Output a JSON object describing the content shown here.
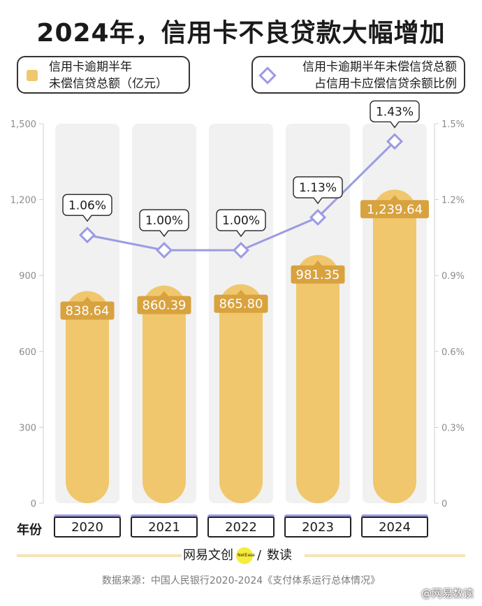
{
  "title": "2024年，信用卡不良贷款大幅增加",
  "legend": {
    "amount_line1": "信用卡逾期半年",
    "amount_line2": "未偿信贷总额（亿元）",
    "ratio_line1": "信用卡逾期半年未偿信贷总额",
    "ratio_line2": "占信用卡应偿信贷余额比例"
  },
  "x_axis_title": "年份",
  "brand": {
    "cn": "网易文创",
    "en": "NetEase",
    "sep": "/",
    "cn2": "数读"
  },
  "source": "数据来源：中国人民银行2020-2024《支付体系运行总体情况》",
  "watermark": "@网易数读",
  "colors": {
    "bar": "#f1c76d",
    "bar_label": "#d8a23e",
    "track": "#f1f1f1",
    "line": "#9b9be4"
  },
  "chart_data": {
    "type": "bar+line",
    "categories": [
      "2020",
      "2021",
      "2022",
      "2023",
      "2024"
    ],
    "series": [
      {
        "name": "信用卡逾期半年未偿信贷总额（亿元）",
        "type": "bar",
        "axis": "left",
        "values": [
          838.64,
          860.39,
          865.8,
          981.35,
          1239.64
        ],
        "labels": [
          "838.64",
          "860.39",
          "865.80",
          "981.35",
          "1,239.64"
        ]
      },
      {
        "name": "信用卡逾期半年未偿信贷总额占信用卡应偿信贷余额比例",
        "type": "line",
        "axis": "right",
        "values": [
          1.06,
          1.0,
          1.0,
          1.13,
          1.43
        ],
        "labels": [
          "1.06%",
          "1.00%",
          "1.00%",
          "1.13%",
          "1.43%"
        ]
      }
    ],
    "y_left": {
      "ylim": [
        0,
        1500
      ],
      "ticks": [
        "0",
        "300",
        "600",
        "900",
        "1,200",
        "1,500"
      ],
      "tick_values": [
        0,
        300,
        600,
        900,
        1200,
        1500
      ]
    },
    "y_right": {
      "ylim": [
        0,
        1.5
      ],
      "ticks": [
        "0",
        "0.3%",
        "0.6%",
        "0.9%",
        "1.2%",
        "1.5%"
      ],
      "tick_values": [
        0,
        0.3,
        0.6,
        0.9,
        1.2,
        1.5
      ]
    },
    "grid": false,
    "legend_position": "top"
  }
}
